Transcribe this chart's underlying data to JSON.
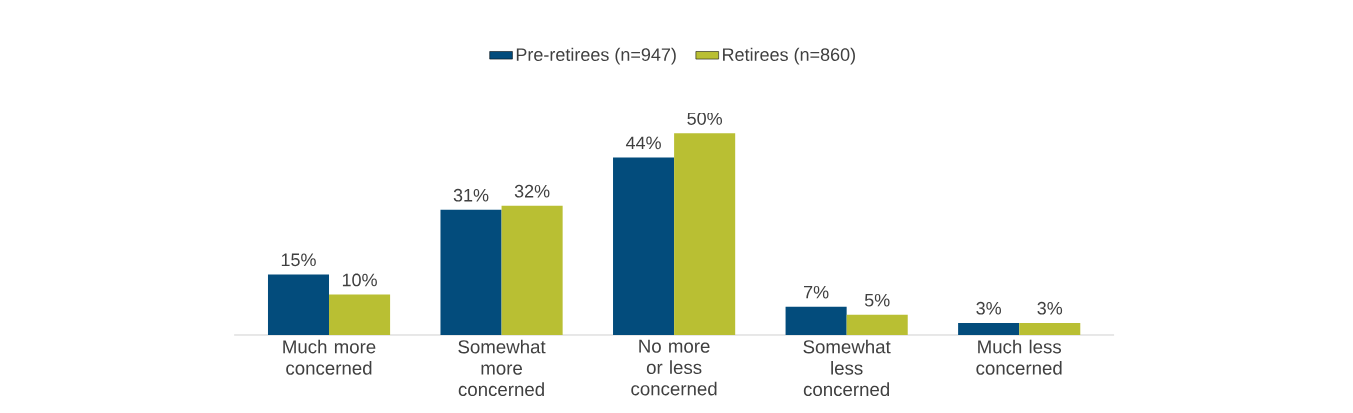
{
  "chart_data": {
    "type": "bar",
    "categories": [
      "Much more concerned",
      "Somewhat more concerned",
      "No more or less concerned",
      "Somewhat less concerned",
      "Much less concerned"
    ],
    "series": [
      {
        "name": "Pre-retirees (n=947)",
        "color": "#034c7c",
        "values": [
          15,
          31,
          44,
          7,
          3
        ],
        "value_labels": [
          "15%",
          "31%",
          "44%",
          "7%",
          "3%"
        ]
      },
      {
        "name": "Retirees  (n=860)",
        "color": "#b9bf33",
        "values": [
          10,
          32,
          50,
          5,
          3
        ],
        "value_labels": [
          "10%",
          "32%",
          "50%",
          "5%",
          "3%"
        ]
      }
    ],
    "legend": "top"
  }
}
